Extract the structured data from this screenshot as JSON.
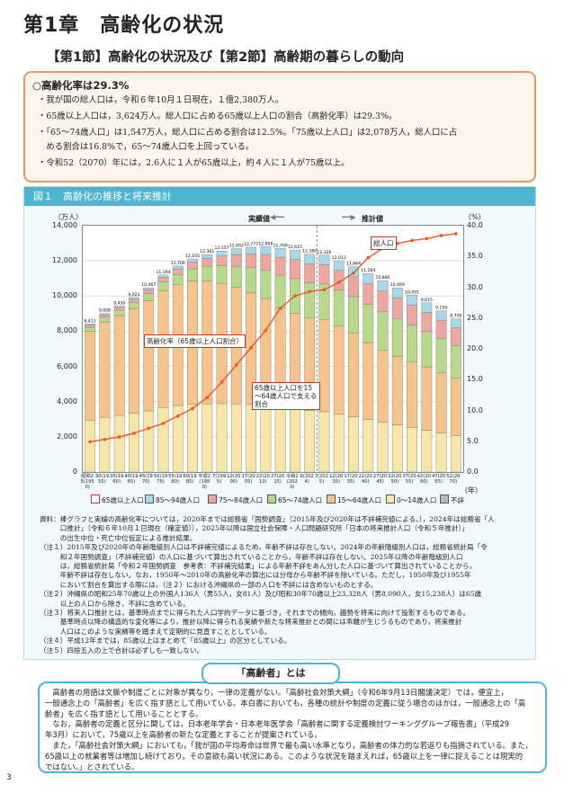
{
  "chapter": "第1章　高齢化の状況",
  "section": "【第1節】高齢化の状況及び【第2節】高齢期の暮らしの動向",
  "summary": {
    "heading": "○高齢化率は29.3%",
    "bullets": [
      "・我が国の総人口は，令和６年10月１日現在，１億2,380万人。",
      "・65歳以上人口は，3,624万人。総人口に占める65歳以上人口の割合（高齢化率）は29.3%。",
      "・「65～74歳人口」は1,547万人，総人口に占める割合は12.5%。「75歳以上人口」は2,078万人，総人口に占",
      "　める割合は16.8%で，65～74歳人口を上回っている。",
      "・令和52（2070）年には，2.6人に１人が65歳以上，約４人に１人が75歳以上。"
    ]
  },
  "figure": {
    "title": "図１　高齢化の推移と将来推計",
    "y_unit_left": "（万人）",
    "y_unit_right": "（%）",
    "actual_label": "実績値",
    "projected_label": "推計値",
    "total_label": "総人口",
    "rate_label": "高齢化率（65歳以上人口割合）",
    "support_label": "65歳以上人口を15～64歳人口で支える割合",
    "year_unit": "（年）",
    "left_ticks": [
      "14,000",
      "12,000",
      "10,000",
      "8,000",
      "6,000",
      "4,000",
      "2,000",
      "0"
    ],
    "right_ticks": [
      "40.0",
      "35.0",
      "30.0",
      "25.0",
      "20.0",
      "15.0",
      "10.0",
      "5.0",
      "0.0"
    ],
    "legend": [
      "65歳以上人口",
      "85～94歳人口",
      "75～84歳人口",
      "65～74歳人口",
      "15～64歳人口",
      "0～14歳人口",
      "不詳"
    ]
  },
  "colors": {
    "age0_14": "#f7e6a8",
    "age15_64": "#f6c48b",
    "age65_74": "#b7d98a",
    "age75_84": "#f0a6a0",
    "age85": "#a8d8ea",
    "unknown": "#bbbbbb",
    "rate_line": "#e8582a"
  },
  "chart_data": {
    "type": "bar",
    "categories": [
      "昭和25(1950)",
      "30(1955)",
      "35(1960)",
      "40(1965)",
      "45(1970)",
      "50(1975)",
      "55(1980)",
      "60(1985)",
      "平成2(1990)",
      "7(1995)",
      "12(2000)",
      "17(2005)",
      "22(2010)",
      "27(2015)",
      "令和2(2020)",
      "6(2024)",
      "7(2025)",
      "12(2030)",
      "17(2035)",
      "22(2040)",
      "27(2045)",
      "32(2050)",
      "37(2055)",
      "42(2060)",
      "47(2065)",
      "52(2070)"
    ],
    "totals": [
      8411,
      9008,
      9430,
      9921,
      10467,
      11194,
      11706,
      12105,
      12361,
      12557,
      12693,
      12777,
      12806,
      12709,
      12615,
      12380,
      12326,
      12012,
      11664,
      11284,
      10880,
      10469,
      10051,
      9615,
      9159,
      8700
    ],
    "aging_rate": [
      4.9,
      5.3,
      5.7,
      6.3,
      7.1,
      7.9,
      9.1,
      10.3,
      12.1,
      14.6,
      17.4,
      20.2,
      23.0,
      26.6,
      28.6,
      29.3,
      29.6,
      30.8,
      32.3,
      34.8,
      36.3,
      37.1,
      37.6,
      37.9,
      38.4,
      38.7
    ],
    "ylabel_left": "（万人）",
    "ylabel_right": "（%）",
    "ylim": [
      0,
      14000
    ],
    "y2lim": [
      0,
      40
    ],
    "grid": true
  },
  "notes": [
    "資料：棒グラフと実線の高齢化率については，2020年までは総務省「国勢調査」（2015年及び2020年は不詳補完値による。），2024年は総務省「人",
    "　　　口推計」（令和６年10月１日現在（確定値）），2025年以降は国立社会保障・人口問題研究所「日本の将来推計人口（令和５年推計）」",
    "　　　の出生中位・死亡中位仮定による推計結果。",
    "（注１）2015年及び2020年の年齢階級別人口は不詳補完値によるため，年齢不詳は存在しない。2024年の年齢階級別人口は，総務省統計局「令",
    "　　　和２年国勢調査」（不詳補完値）の人口に基づいて算出されていることから，年齢不詳は存在しない。2025年以降の年齢階級別人口",
    "　　　は，総務省統計局「令和２年国勢調査　参考表：不詳補完結果」による年齢不詳をあん分した人口に基づいて算出されていることから，",
    "　　　年齢不詳は存在しない。なお，1950年～2010年の高齢化率の算出には分母から年齢不詳を除いている。ただし，1950年及び1955年",
    "　　　において割合を算出する際には，（注２）における沖縄県の一部の人口を不詳には含めないものとする。",
    "（注２）沖縄県の昭和25年70歳以上の外国人136人（男55人，女81人）及び昭和30年70歳以上23,328人（男8,090人，女15,238人）は65歳",
    "　　　以上の人口から除き，不詳に含めている。",
    "（注３）将来人口推計とは，基準時点までに得られた人口学的データに基づき，それまでの傾向，趨勢を将来に向けて投影するものである。",
    "　　　基準時点以降の構造的な変化等により，推計以降に得られる実績や新たな将来推計との間には乖離が生じうるものであり，将来推計",
    "　　　人口はこのような実績等を踏まえて定期的に見直すこととしている。",
    "（注４）平成12年までは，85歳以上はまとめて「85歳以上」の区分としている。",
    "（注５）四捨五入の上で合計は必ずしも一致しない。"
  ],
  "concept": {
    "title": "「高齢者」とは",
    "lines": [
      "　高齢者の用語は文脈や制度ごとに対象が異なり，一律の定義がない。「高齢社会対策大綱」（令和6年9月13日閣議決定）では，便宜上，",
      "一般通念上の「高齢者」を広く指す語として用いている。本白書においても，各種の統計や制度の定義に従う場合のほかは，一般通念上の「高",
      "齢者」を広く指す語として用いることとする。",
      "　なお，高齢者の定義と区分に関しては，日本老年学会・日本老年医学会「高齢者に関する定義検討ワーキンググループ報告書」（平成29",
      "年3月）において，75歳以上を高齢者の新たな定義とすることが提案されている。",
      "　また，「高齢社会対策大綱」においても，「我が国の平均寿命は世界で最も高い水準となり，高齢者の体力的な若返りも指摘されている。また，",
      "65歳以上の就業者等は増加し続けており，その意欲も高い状況にある。このような状況を踏まえれば，65歳以上を一律に捉えることは現実的",
      "ではない。」とされている。"
    ]
  },
  "page_number": "3"
}
